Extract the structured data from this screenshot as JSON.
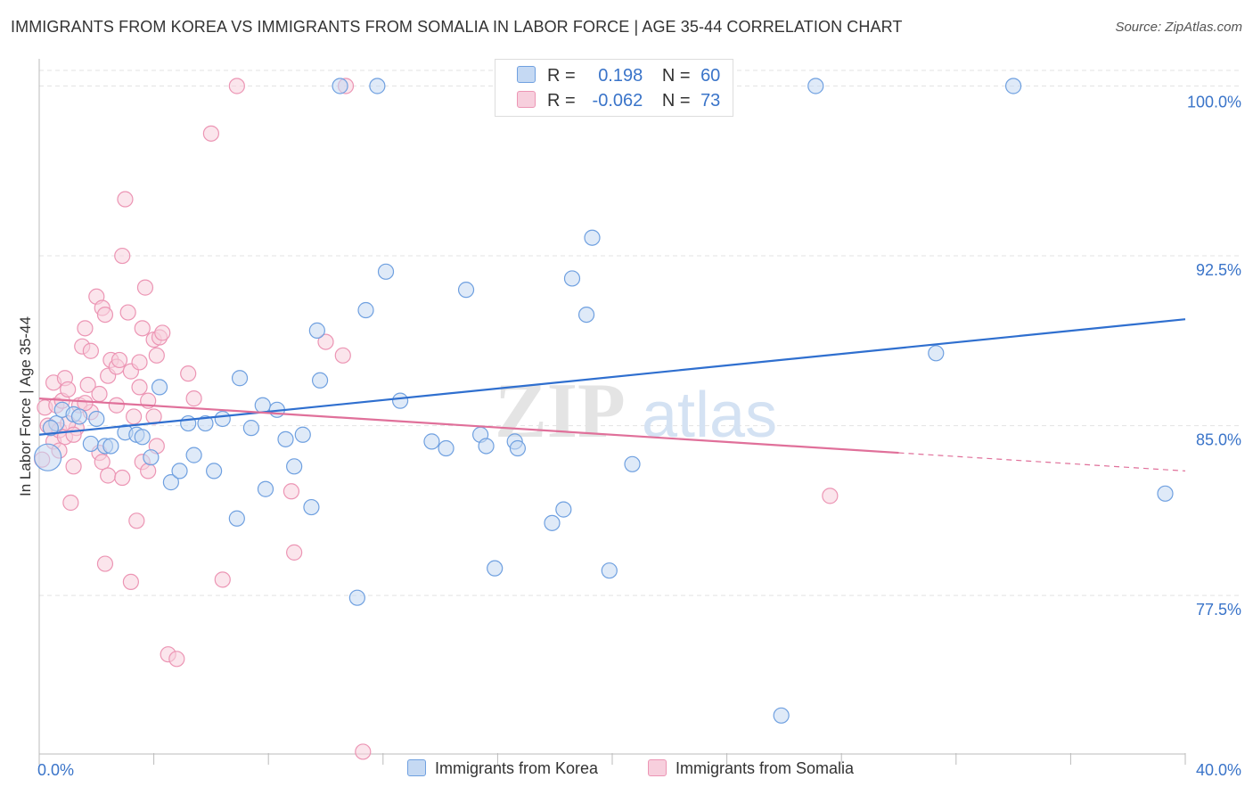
{
  "title": "IMMIGRANTS FROM KOREA VS IMMIGRANTS FROM SOMALIA IN LABOR FORCE | AGE 35-44 CORRELATION CHART",
  "source": "Source: ZipAtlas.com",
  "watermark": {
    "zip": "ZIP",
    "atlas": "atlas"
  },
  "legend": {
    "rows": [
      {
        "r_label": "R =",
        "r_value": "0.198",
        "n_label": "N =",
        "n_value": "60"
      },
      {
        "r_label": "R =",
        "r_value": "-0.062",
        "n_label": "N =",
        "n_value": "73"
      }
    ]
  },
  "colors": {
    "korea": "#6fa0e0",
    "korea_fill": "#c5d9f3",
    "korea_line": "#2f6fcf",
    "somalia": "#ec95b4",
    "somalia_fill": "#f7cfdd",
    "somalia_line": "#e0709a",
    "axis_text": "#3a74c9",
    "grid": "#e3e3e3"
  },
  "chart_data": {
    "type": "scatter",
    "title": "IMMIGRANTS FROM KOREA VS IMMIGRANTS FROM SOMALIA IN LABOR FORCE | AGE 35-44 CORRELATION CHART",
    "xlabel": "",
    "ylabel": "In Labor Force | Age 35-44",
    "xlim": [
      0,
      40
    ],
    "ylim": [
      70.5,
      101.2
    ],
    "x_tick_labels": [
      "0.0%",
      "40.0%"
    ],
    "y_ticks": [
      77.5,
      85.0,
      92.5,
      100.0
    ],
    "y_tick_labels": [
      "77.5%",
      "85.0%",
      "92.5%",
      "100.0%"
    ],
    "grid": true,
    "legend_position": "top-center",
    "series": [
      {
        "name": "Immigrants from Korea",
        "r": 0.198,
        "n": 60,
        "trend": {
          "x": [
            0,
            40
          ],
          "y": [
            84.6,
            89.7
          ],
          "dashed_from": null
        },
        "points": [
          [
            0.3,
            83.6
          ],
          [
            0.6,
            85.1
          ],
          [
            0.8,
            85.7
          ],
          [
            1.2,
            85.5
          ],
          [
            1.4,
            85.4
          ],
          [
            1.8,
            84.2
          ],
          [
            2.3,
            84.1
          ],
          [
            2.5,
            84.1
          ],
          [
            3.0,
            84.7
          ],
          [
            3.4,
            84.6
          ],
          [
            3.6,
            84.5
          ],
          [
            3.9,
            83.6
          ],
          [
            4.2,
            86.7
          ],
          [
            4.6,
            82.5
          ],
          [
            4.9,
            83.0
          ],
          [
            5.2,
            85.1
          ],
          [
            5.4,
            83.7
          ],
          [
            5.8,
            85.1
          ],
          [
            6.1,
            83.0
          ],
          [
            6.4,
            85.3
          ],
          [
            6.9,
            80.9
          ],
          [
            7.0,
            87.1
          ],
          [
            7.4,
            84.9
          ],
          [
            7.8,
            85.9
          ],
          [
            7.9,
            82.2
          ],
          [
            8.3,
            85.7
          ],
          [
            8.6,
            84.4
          ],
          [
            8.9,
            83.2
          ],
          [
            9.2,
            84.6
          ],
          [
            9.5,
            81.4
          ],
          [
            9.7,
            89.2
          ],
          [
            9.8,
            87.0
          ],
          [
            10.5,
            100.0
          ],
          [
            11.1,
            77.4
          ],
          [
            11.4,
            90.1
          ],
          [
            11.8,
            100.0
          ],
          [
            12.1,
            91.8
          ],
          [
            12.6,
            86.1
          ],
          [
            13.7,
            84.3
          ],
          [
            14.2,
            84.0
          ],
          [
            14.9,
            91.0
          ],
          [
            15.4,
            84.6
          ],
          [
            15.6,
            84.1
          ],
          [
            15.9,
            78.7
          ],
          [
            16.6,
            84.3
          ],
          [
            16.7,
            84.0
          ],
          [
            17.9,
            80.7
          ],
          [
            18.3,
            81.3
          ],
          [
            18.6,
            91.5
          ],
          [
            19.1,
            89.9
          ],
          [
            19.3,
            93.3
          ],
          [
            19.9,
            78.6
          ],
          [
            20.7,
            83.3
          ],
          [
            25.9,
            72.2
          ],
          [
            27.1,
            100.0
          ],
          [
            31.3,
            88.2
          ],
          [
            34.0,
            100.0
          ],
          [
            39.3,
            82.0
          ],
          [
            0.4,
            84.9
          ],
          [
            2.0,
            85.3
          ]
        ]
      },
      {
        "name": "Immigrants from Somalia",
        "r": -0.062,
        "n": 73,
        "trend": {
          "x": [
            0,
            40
          ],
          "y": [
            86.2,
            83.0
          ],
          "dashed_from": 30.0
        },
        "points": [
          [
            0.1,
            83.5
          ],
          [
            0.2,
            85.8
          ],
          [
            0.3,
            85.0
          ],
          [
            0.4,
            84.9
          ],
          [
            0.5,
            86.9
          ],
          [
            0.5,
            84.3
          ],
          [
            0.6,
            85.9
          ],
          [
            0.7,
            84.8
          ],
          [
            0.8,
            86.1
          ],
          [
            0.9,
            87.1
          ],
          [
            0.9,
            84.5
          ],
          [
            1.0,
            86.6
          ],
          [
            1.1,
            81.6
          ],
          [
            1.2,
            83.2
          ],
          [
            1.3,
            84.9
          ],
          [
            1.4,
            85.9
          ],
          [
            1.5,
            88.5
          ],
          [
            1.6,
            89.3
          ],
          [
            1.7,
            86.8
          ],
          [
            1.8,
            85.6
          ],
          [
            1.8,
            88.3
          ],
          [
            2.0,
            90.7
          ],
          [
            2.1,
            83.8
          ],
          [
            2.2,
            90.2
          ],
          [
            2.2,
            83.4
          ],
          [
            2.3,
            89.9
          ],
          [
            2.3,
            78.9
          ],
          [
            2.4,
            82.8
          ],
          [
            2.4,
            87.2
          ],
          [
            2.5,
            87.9
          ],
          [
            2.7,
            85.9
          ],
          [
            2.7,
            87.6
          ],
          [
            2.8,
            87.9
          ],
          [
            2.9,
            92.5
          ],
          [
            2.9,
            82.7
          ],
          [
            3.0,
            95.0
          ],
          [
            3.1,
            90.0
          ],
          [
            3.2,
            87.4
          ],
          [
            3.2,
            78.1
          ],
          [
            3.3,
            85.4
          ],
          [
            3.4,
            80.8
          ],
          [
            3.5,
            86.7
          ],
          [
            3.5,
            87.8
          ],
          [
            3.6,
            89.3
          ],
          [
            3.6,
            83.4
          ],
          [
            3.7,
            91.1
          ],
          [
            3.8,
            86.1
          ],
          [
            3.8,
            83.0
          ],
          [
            4.0,
            88.8
          ],
          [
            4.0,
            85.4
          ],
          [
            4.1,
            88.1
          ],
          [
            4.1,
            84.1
          ],
          [
            4.2,
            88.9
          ],
          [
            4.3,
            89.1
          ],
          [
            4.5,
            74.9
          ],
          [
            4.8,
            74.7
          ],
          [
            5.2,
            87.3
          ],
          [
            5.4,
            86.2
          ],
          [
            6.0,
            97.9
          ],
          [
            6.4,
            78.2
          ],
          [
            6.9,
            100.0
          ],
          [
            8.8,
            82.1
          ],
          [
            8.9,
            79.4
          ],
          [
            10.0,
            88.7
          ],
          [
            10.6,
            88.1
          ],
          [
            10.7,
            100.0
          ],
          [
            11.3,
            70.6
          ],
          [
            27.6,
            81.9
          ],
          [
            1.0,
            85.1
          ],
          [
            1.6,
            86.0
          ],
          [
            2.1,
            86.4
          ],
          [
            0.7,
            83.9
          ],
          [
            1.2,
            84.6
          ]
        ]
      }
    ]
  },
  "bottom_legend": [
    {
      "label": "Immigrants from Korea"
    },
    {
      "label": "Immigrants from Somalia"
    }
  ]
}
